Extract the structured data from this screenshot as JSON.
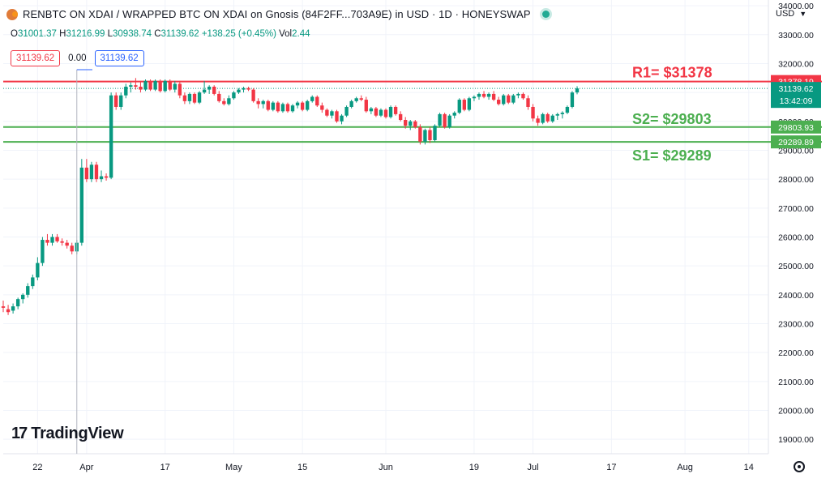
{
  "header": {
    "symbol_title": "RENBTC ON XDAI / WRAPPED BTC ON XDAI on Gnosis (84F2FF...703A9E) in USD · 1D · HONEYSWAP",
    "ohlc": {
      "o_label": "O",
      "o": "31001.37",
      "h_label": "H",
      "h": "31216.99",
      "l_label": "L",
      "l": "30938.74",
      "c_label": "C",
      "c": "31139.62",
      "change": "+138.25 (+0.45%)",
      "vol_label": "Vol",
      "vol": "2.44"
    }
  },
  "trade_badges": {
    "sell": "31139.62",
    "spread": "0.00",
    "buy": "31139.62"
  },
  "currency_selector": "USD",
  "watermark": "TradingView",
  "colors": {
    "up": "#089981",
    "down": "#f23645",
    "resistance": "#f23645",
    "support": "#4caf50",
    "live_dot": "#22ab94"
  },
  "icons": {
    "currency_dropdown": "chevron-down-icon",
    "settings": "gear-icon",
    "brand": "tradingview-logo-icon"
  },
  "chart_data": {
    "type": "candlestick",
    "y_axis": {
      "ylim": [
        18500,
        34200
      ],
      "ticks": [
        19000,
        20000,
        21000,
        22000,
        23000,
        24000,
        25000,
        26000,
        27000,
        28000,
        29000,
        30000,
        31000,
        32000,
        33000,
        34000
      ],
      "tick_labels": [
        "19000.00",
        "20000.00",
        "21000.00",
        "22000.00",
        "23000.00",
        "24000.00",
        "25000.00",
        "26000.00",
        "27000.00",
        "28000.00",
        "29000.00",
        "30000.00",
        "31000.00",
        "32000.00",
        "33000.00",
        "34000.00"
      ]
    },
    "x_axis": {
      "xlim": [
        "2023-03-15",
        "2023-08-18"
      ],
      "ticks": [
        "2023-03-22",
        "2023-04-01",
        "2023-04-17",
        "2023-05-01",
        "2023-05-15",
        "2023-06-01",
        "2023-06-19",
        "2023-07-01",
        "2023-07-17",
        "2023-08-01",
        "2023-08-14"
      ],
      "tick_labels": [
        "22",
        "Apr",
        "17",
        "May",
        "15",
        "Jun",
        "19",
        "Jul",
        "17",
        "Aug",
        "14"
      ]
    },
    "grid": true,
    "levels": [
      {
        "label": "R1= $31378",
        "value": 31378.19,
        "axis_label": "31378.19",
        "kind": "resistance"
      },
      {
        "label": "S2= $29803",
        "value": 29803.93,
        "axis_label": "29803.93",
        "kind": "support"
      },
      {
        "label": "S1= $29289",
        "value": 29289.89,
        "axis_label": "29289.89",
        "kind": "support"
      }
    ],
    "last_price": {
      "value": 31139.62,
      "label": "31139.62",
      "countdown": "13:42:09"
    },
    "crosshair_date": "2023-03-30",
    "candles": [
      {
        "d": "2023-03-15",
        "o": 23600,
        "h": 23800,
        "l": 23400,
        "c": 23550
      },
      {
        "d": "2023-03-16",
        "o": 23500,
        "h": 23650,
        "l": 23300,
        "c": 23400
      },
      {
        "d": "2023-03-17",
        "o": 23450,
        "h": 23700,
        "l": 23350,
        "c": 23600
      },
      {
        "d": "2023-03-18",
        "o": 23600,
        "h": 23900,
        "l": 23500,
        "c": 23850
      },
      {
        "d": "2023-03-19",
        "o": 23850,
        "h": 24050,
        "l": 23700,
        "c": 24000
      },
      {
        "d": "2023-03-20",
        "o": 24000,
        "h": 24400,
        "l": 23900,
        "c": 24300
      },
      {
        "d": "2023-03-21",
        "o": 24300,
        "h": 24700,
        "l": 24200,
        "c": 24600
      },
      {
        "d": "2023-03-22",
        "o": 24600,
        "h": 25300,
        "l": 24500,
        "c": 25100
      },
      {
        "d": "2023-03-23",
        "o": 25100,
        "h": 26000,
        "l": 25000,
        "c": 25900
      },
      {
        "d": "2023-03-24",
        "o": 25900,
        "h": 26100,
        "l": 25700,
        "c": 25800
      },
      {
        "d": "2023-03-25",
        "o": 25800,
        "h": 26100,
        "l": 25700,
        "c": 26000
      },
      {
        "d": "2023-03-26",
        "o": 26000,
        "h": 26100,
        "l": 25800,
        "c": 25850
      },
      {
        "d": "2023-03-27",
        "o": 25850,
        "h": 25950,
        "l": 25700,
        "c": 25800
      },
      {
        "d": "2023-03-28",
        "o": 25800,
        "h": 25900,
        "l": 25600,
        "c": 25700
      },
      {
        "d": "2023-03-29",
        "o": 25700,
        "h": 25800,
        "l": 25400,
        "c": 25500
      },
      {
        "d": "2023-03-30",
        "o": 25500,
        "h": 25900,
        "l": 25400,
        "c": 25800
      },
      {
        "d": "2023-03-31",
        "o": 25800,
        "h": 28700,
        "l": 25700,
        "c": 28400
      },
      {
        "d": "2023-04-01",
        "o": 28400,
        "h": 28700,
        "l": 27900,
        "c": 28000
      },
      {
        "d": "2023-04-02",
        "o": 28000,
        "h": 28600,
        "l": 27900,
        "c": 28500
      },
      {
        "d": "2023-04-03",
        "o": 28500,
        "h": 28600,
        "l": 27900,
        "c": 28000
      },
      {
        "d": "2023-04-04",
        "o": 28000,
        "h": 28300,
        "l": 27900,
        "c": 28100
      },
      {
        "d": "2023-04-05",
        "o": 28100,
        "h": 28200,
        "l": 27950,
        "c": 28050
      },
      {
        "d": "2023-04-06",
        "o": 28050,
        "h": 31000,
        "l": 28000,
        "c": 30900
      },
      {
        "d": "2023-04-07",
        "o": 30900,
        "h": 31000,
        "l": 30400,
        "c": 30500
      },
      {
        "d": "2023-04-08",
        "o": 30500,
        "h": 31000,
        "l": 30400,
        "c": 30900
      },
      {
        "d": "2023-04-09",
        "o": 30900,
        "h": 31300,
        "l": 30800,
        "c": 31200
      },
      {
        "d": "2023-04-10",
        "o": 31200,
        "h": 31350,
        "l": 31000,
        "c": 31250
      },
      {
        "d": "2023-04-11",
        "o": 31250,
        "h": 31500,
        "l": 31100,
        "c": 31200
      },
      {
        "d": "2023-04-12",
        "o": 31200,
        "h": 31400,
        "l": 31000,
        "c": 31100
      },
      {
        "d": "2023-04-13",
        "o": 31100,
        "h": 31450,
        "l": 31050,
        "c": 31400
      },
      {
        "d": "2023-04-14",
        "o": 31400,
        "h": 31450,
        "l": 31050,
        "c": 31100
      },
      {
        "d": "2023-04-15",
        "o": 31100,
        "h": 31450,
        "l": 31050,
        "c": 31400
      },
      {
        "d": "2023-04-16",
        "o": 31400,
        "h": 31450,
        "l": 31000,
        "c": 31050
      },
      {
        "d": "2023-04-17",
        "o": 31050,
        "h": 31450,
        "l": 31000,
        "c": 31400
      },
      {
        "d": "2023-04-18",
        "o": 31400,
        "h": 31450,
        "l": 31050,
        "c": 31100
      },
      {
        "d": "2023-04-19",
        "o": 31100,
        "h": 31400,
        "l": 31000,
        "c": 31300
      },
      {
        "d": "2023-04-20",
        "o": 31300,
        "h": 31400,
        "l": 30800,
        "c": 30900
      },
      {
        "d": "2023-04-21",
        "o": 30900,
        "h": 31000,
        "l": 30600,
        "c": 30700
      },
      {
        "d": "2023-04-22",
        "o": 30700,
        "h": 31000,
        "l": 30600,
        "c": 30950
      },
      {
        "d": "2023-04-23",
        "o": 30950,
        "h": 31000,
        "l": 30600,
        "c": 30650
      },
      {
        "d": "2023-04-24",
        "o": 30650,
        "h": 31050,
        "l": 30600,
        "c": 31000
      },
      {
        "d": "2023-04-25",
        "o": 31000,
        "h": 31400,
        "l": 30950,
        "c": 31100
      },
      {
        "d": "2023-04-26",
        "o": 31100,
        "h": 31250,
        "l": 30950,
        "c": 31200
      },
      {
        "d": "2023-04-27",
        "o": 31200,
        "h": 31250,
        "l": 30900,
        "c": 30950
      },
      {
        "d": "2023-04-28",
        "o": 30950,
        "h": 31050,
        "l": 30650,
        "c": 30700
      },
      {
        "d": "2023-04-29",
        "o": 30700,
        "h": 30800,
        "l": 30550,
        "c": 30600
      },
      {
        "d": "2023-04-30",
        "o": 30600,
        "h": 30900,
        "l": 30550,
        "c": 30800
      },
      {
        "d": "2023-05-01",
        "o": 30800,
        "h": 31050,
        "l": 30750,
        "c": 31000
      },
      {
        "d": "2023-05-02",
        "o": 31000,
        "h": 31150,
        "l": 30950,
        "c": 31100
      },
      {
        "d": "2023-05-03",
        "o": 31100,
        "h": 31200,
        "l": 31000,
        "c": 31150
      },
      {
        "d": "2023-05-04",
        "o": 31150,
        "h": 31200,
        "l": 31050,
        "c": 31100
      },
      {
        "d": "2023-05-05",
        "o": 31100,
        "h": 31150,
        "l": 30650,
        "c": 30700
      },
      {
        "d": "2023-05-06",
        "o": 30700,
        "h": 30800,
        "l": 30450,
        "c": 30600
      },
      {
        "d": "2023-05-07",
        "o": 30600,
        "h": 30750,
        "l": 30450,
        "c": 30700
      },
      {
        "d": "2023-05-08",
        "o": 30700,
        "h": 30750,
        "l": 30350,
        "c": 30400
      },
      {
        "d": "2023-05-09",
        "o": 30400,
        "h": 30700,
        "l": 30350,
        "c": 30650
      },
      {
        "d": "2023-05-10",
        "o": 30650,
        "h": 30700,
        "l": 30300,
        "c": 30350
      },
      {
        "d": "2023-05-11",
        "o": 30350,
        "h": 30650,
        "l": 30300,
        "c": 30600
      },
      {
        "d": "2023-05-12",
        "o": 30600,
        "h": 30650,
        "l": 30300,
        "c": 30350
      },
      {
        "d": "2023-05-13",
        "o": 30350,
        "h": 30600,
        "l": 30300,
        "c": 30550
      },
      {
        "d": "2023-05-14",
        "o": 30550,
        "h": 30700,
        "l": 30450,
        "c": 30650
      },
      {
        "d": "2023-05-15",
        "o": 30650,
        "h": 30700,
        "l": 30350,
        "c": 30400
      },
      {
        "d": "2023-05-16",
        "o": 30400,
        "h": 30750,
        "l": 30350,
        "c": 30700
      },
      {
        "d": "2023-05-17",
        "o": 30700,
        "h": 30900,
        "l": 30650,
        "c": 30850
      },
      {
        "d": "2023-05-18",
        "o": 30850,
        "h": 30900,
        "l": 30500,
        "c": 30550
      },
      {
        "d": "2023-05-19",
        "o": 30550,
        "h": 30650,
        "l": 30300,
        "c": 30400
      },
      {
        "d": "2023-05-20",
        "o": 30400,
        "h": 30450,
        "l": 30150,
        "c": 30200
      },
      {
        "d": "2023-05-21",
        "o": 30200,
        "h": 30400,
        "l": 30100,
        "c": 30350
      },
      {
        "d": "2023-05-22",
        "o": 30350,
        "h": 30400,
        "l": 29950,
        "c": 30000
      },
      {
        "d": "2023-05-23",
        "o": 30000,
        "h": 30250,
        "l": 29900,
        "c": 30200
      },
      {
        "d": "2023-05-24",
        "o": 30200,
        "h": 30550,
        "l": 30150,
        "c": 30500
      },
      {
        "d": "2023-05-25",
        "o": 30500,
        "h": 30750,
        "l": 30450,
        "c": 30700
      },
      {
        "d": "2023-05-26",
        "o": 30700,
        "h": 30850,
        "l": 30650,
        "c": 30800
      },
      {
        "d": "2023-05-27",
        "o": 30800,
        "h": 30900,
        "l": 30700,
        "c": 30750
      },
      {
        "d": "2023-05-28",
        "o": 30750,
        "h": 30850,
        "l": 30300,
        "c": 30350
      },
      {
        "d": "2023-05-29",
        "o": 30350,
        "h": 30500,
        "l": 30250,
        "c": 30450
      },
      {
        "d": "2023-05-30",
        "o": 30450,
        "h": 30500,
        "l": 30150,
        "c": 30200
      },
      {
        "d": "2023-05-31",
        "o": 30200,
        "h": 30450,
        "l": 30150,
        "c": 30400
      },
      {
        "d": "2023-06-01",
        "o": 30400,
        "h": 30450,
        "l": 30100,
        "c": 30150
      },
      {
        "d": "2023-06-02",
        "o": 30150,
        "h": 30550,
        "l": 30100,
        "c": 30500
      },
      {
        "d": "2023-06-03",
        "o": 30500,
        "h": 30550,
        "l": 30200,
        "c": 30250
      },
      {
        "d": "2023-06-04",
        "o": 30250,
        "h": 30350,
        "l": 30000,
        "c": 30050
      },
      {
        "d": "2023-06-05",
        "o": 30050,
        "h": 30150,
        "l": 29750,
        "c": 29850
      },
      {
        "d": "2023-06-06",
        "o": 29850,
        "h": 30050,
        "l": 29700,
        "c": 30000
      },
      {
        "d": "2023-06-07",
        "o": 30000,
        "h": 30050,
        "l": 29750,
        "c": 29800
      },
      {
        "d": "2023-06-08",
        "o": 29800,
        "h": 29900,
        "l": 29200,
        "c": 29300
      },
      {
        "d": "2023-06-09",
        "o": 29300,
        "h": 29750,
        "l": 29200,
        "c": 29700
      },
      {
        "d": "2023-06-10",
        "o": 29700,
        "h": 29800,
        "l": 29250,
        "c": 29350
      },
      {
        "d": "2023-06-11",
        "o": 29350,
        "h": 29900,
        "l": 29300,
        "c": 29850
      },
      {
        "d": "2023-06-12",
        "o": 29850,
        "h": 30300,
        "l": 29800,
        "c": 30250
      },
      {
        "d": "2023-06-13",
        "o": 30250,
        "h": 30300,
        "l": 29750,
        "c": 29800
      },
      {
        "d": "2023-06-14",
        "o": 29800,
        "h": 30250,
        "l": 29750,
        "c": 30200
      },
      {
        "d": "2023-06-15",
        "o": 30200,
        "h": 30350,
        "l": 30100,
        "c": 30300
      },
      {
        "d": "2023-06-16",
        "o": 30300,
        "h": 30800,
        "l": 30250,
        "c": 30750
      },
      {
        "d": "2023-06-17",
        "o": 30750,
        "h": 30800,
        "l": 30350,
        "c": 30400
      },
      {
        "d": "2023-06-18",
        "o": 30400,
        "h": 30850,
        "l": 30350,
        "c": 30800
      },
      {
        "d": "2023-06-19",
        "o": 30800,
        "h": 30900,
        "l": 30700,
        "c": 30850
      },
      {
        "d": "2023-06-20",
        "o": 30850,
        "h": 31000,
        "l": 30750,
        "c": 30950
      },
      {
        "d": "2023-06-21",
        "o": 30950,
        "h": 31050,
        "l": 30800,
        "c": 30850
      },
      {
        "d": "2023-06-22",
        "o": 30850,
        "h": 31000,
        "l": 30750,
        "c": 30950
      },
      {
        "d": "2023-06-23",
        "o": 30950,
        "h": 31050,
        "l": 30700,
        "c": 30750
      },
      {
        "d": "2023-06-24",
        "o": 30750,
        "h": 30850,
        "l": 30550,
        "c": 30600
      },
      {
        "d": "2023-06-25",
        "o": 30600,
        "h": 30950,
        "l": 30550,
        "c": 30900
      },
      {
        "d": "2023-06-26",
        "o": 30900,
        "h": 30950,
        "l": 30600,
        "c": 30650
      },
      {
        "d": "2023-06-27",
        "o": 30650,
        "h": 30950,
        "l": 30600,
        "c": 30900
      },
      {
        "d": "2023-06-28",
        "o": 30900,
        "h": 31000,
        "l": 30800,
        "c": 30950
      },
      {
        "d": "2023-06-29",
        "o": 30950,
        "h": 31000,
        "l": 30750,
        "c": 30800
      },
      {
        "d": "2023-06-30",
        "o": 30800,
        "h": 30900,
        "l": 30400,
        "c": 30500
      },
      {
        "d": "2023-07-01",
        "o": 30500,
        "h": 30600,
        "l": 30000,
        "c": 30100
      },
      {
        "d": "2023-07-02",
        "o": 30100,
        "h": 30200,
        "l": 29850,
        "c": 29950
      },
      {
        "d": "2023-07-03",
        "o": 29950,
        "h": 30300,
        "l": 29900,
        "c": 30250
      },
      {
        "d": "2023-07-04",
        "o": 30250,
        "h": 30300,
        "l": 29950,
        "c": 30000
      },
      {
        "d": "2023-07-05",
        "o": 30000,
        "h": 30250,
        "l": 29950,
        "c": 30200
      },
      {
        "d": "2023-07-06",
        "o": 30200,
        "h": 30300,
        "l": 30050,
        "c": 30250
      },
      {
        "d": "2023-07-07",
        "o": 30250,
        "h": 30350,
        "l": 30100,
        "c": 30300
      },
      {
        "d": "2023-07-08",
        "o": 30300,
        "h": 30550,
        "l": 30250,
        "c": 30500
      },
      {
        "d": "2023-07-09",
        "o": 30500,
        "h": 31050,
        "l": 30450,
        "c": 31000
      },
      {
        "d": "2023-07-10",
        "o": 31001.37,
        "h": 31216.99,
        "l": 30938.74,
        "c": 31139.62
      }
    ]
  }
}
